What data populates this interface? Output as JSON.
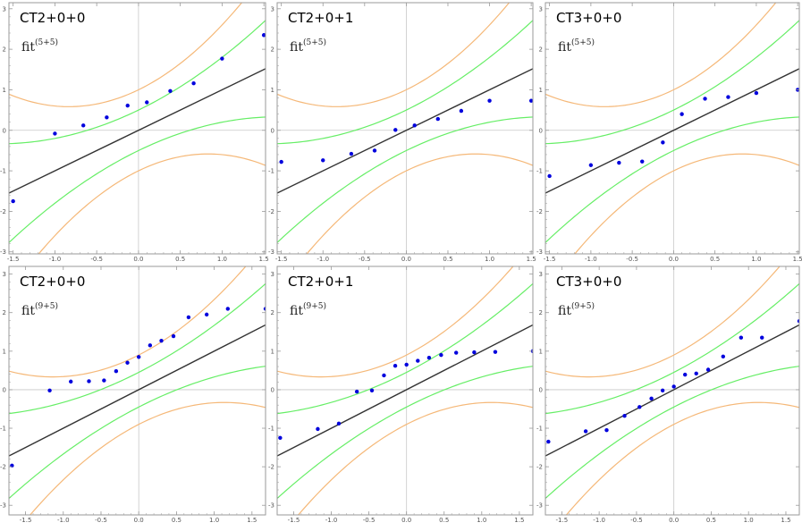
{
  "colors": {
    "frame": "#9a9a9a",
    "axis": "#c8c8c8",
    "identity": "#333333",
    "inner_band": "#66ee66",
    "outer_band": "#f5b878",
    "points": "#0000dd"
  },
  "chart_data": [
    {
      "type": "scatter",
      "title": "CT2+0+0",
      "fit_label": "fit",
      "fit_sup": "(5+5)",
      "xlim": [
        -1.55,
        1.52
      ],
      "ylim": [
        -3.05,
        3.15
      ],
      "xticks": [
        -1.5,
        -1.0,
        -0.5,
        0.0,
        0.5,
        1.0,
        1.5
      ],
      "xtick_labels": [
        "-1.5",
        "-1.0",
        "-0.5",
        "0.0",
        "0.5",
        "1.0",
        "1.5"
      ],
      "yticks": [
        -3,
        -2,
        -1,
        0,
        1,
        2,
        3
      ],
      "ytick_labels": [
        "-3",
        "-2",
        "-1",
        "0",
        "1",
        "2",
        "3"
      ],
      "band_a": 1.0,
      "band_b": 0.5,
      "band_c": 0.3,
      "x": [
        -1.5,
        -1.0,
        -0.66,
        -0.38,
        -0.13,
        0.1,
        0.38,
        0.66,
        1.0,
        1.5
      ],
      "y": [
        -1.75,
        -0.08,
        0.12,
        0.32,
        0.61,
        0.69,
        0.97,
        1.16,
        1.77,
        2.35
      ]
    },
    {
      "type": "scatter",
      "title": "CT2+0+1",
      "fit_label": "fit",
      "fit_sup": "(5+5)",
      "xlim": [
        -1.55,
        1.52
      ],
      "ylim": [
        -3.05,
        3.15
      ],
      "xticks": [
        -1.5,
        -1.0,
        -0.5,
        0.0,
        0.5,
        1.0,
        1.5
      ],
      "xtick_labels": [
        "-1.5",
        "-1.0",
        "-0.5",
        "0.0",
        "0.5",
        "1.0",
        "1.5"
      ],
      "yticks": [
        -3,
        -2,
        -1,
        0,
        1,
        2,
        3
      ],
      "ytick_labels": [
        "-3",
        "-2",
        "-1",
        "0",
        "1",
        "2",
        "3"
      ],
      "band_a": 1.0,
      "band_b": 0.5,
      "band_c": 0.3,
      "x": [
        -1.5,
        -1.0,
        -0.66,
        -0.38,
        -0.13,
        0.1,
        0.38,
        0.66,
        1.0,
        1.5
      ],
      "y": [
        -0.78,
        -0.74,
        -0.58,
        -0.5,
        0.01,
        0.12,
        0.28,
        0.48,
        0.73,
        0.73
      ]
    },
    {
      "type": "scatter",
      "title": "CT3+0+0",
      "fit_label": "fit",
      "fit_sup": "(5+5)",
      "xlim": [
        -1.55,
        1.52
      ],
      "ylim": [
        -3.05,
        3.15
      ],
      "xticks": [
        -1.5,
        -1.0,
        -0.5,
        0.0,
        0.5,
        1.0,
        1.5
      ],
      "xtick_labels": [
        "-1.5",
        "-1.0",
        "-0.5",
        "0.0",
        "0.5",
        "1.0",
        "1.5"
      ],
      "yticks": [
        -3,
        -2,
        -1,
        0,
        1,
        2,
        3
      ],
      "ytick_labels": [
        "-3",
        "-2",
        "-1",
        "0",
        "1",
        "2",
        "3"
      ],
      "band_a": 1.0,
      "band_b": 0.5,
      "band_c": 0.3,
      "x": [
        -1.5,
        -1.0,
        -0.66,
        -0.38,
        -0.13,
        0.1,
        0.38,
        0.66,
        1.0,
        1.5
      ],
      "y": [
        -1.13,
        -0.86,
        -0.8,
        -0.77,
        -0.3,
        0.4,
        0.78,
        0.82,
        0.92,
        1.0
      ]
    },
    {
      "type": "scatter",
      "title": "CT2+0+0",
      "fit_label": "fit",
      "fit_sup": "(9+5)",
      "xlim": [
        -1.72,
        1.68
      ],
      "ylim": [
        -3.25,
        3.2
      ],
      "xticks": [
        -1.5,
        -1.0,
        -0.5,
        0.0,
        0.5,
        1.0,
        1.5
      ],
      "xtick_labels": [
        "-1.5",
        "-1.0",
        "-0.5",
        "0.0",
        "0.5",
        "1.0",
        "1.5"
      ],
      "yticks": [
        -3,
        -2,
        -1,
        0,
        1,
        2,
        3
      ],
      "ytick_labels": [
        "-3",
        "-2",
        "-1",
        "0",
        "1",
        "2",
        "3"
      ],
      "band_a": 1.0,
      "band_b": 0.45,
      "band_c": 0.22,
      "x": [
        -1.68,
        -1.18,
        -0.9,
        -0.66,
        -0.46,
        -0.3,
        -0.15,
        0.0,
        0.15,
        0.3,
        0.46,
        0.66,
        0.9,
        1.18,
        1.68
      ],
      "y": [
        -1.97,
        -0.02,
        0.21,
        0.22,
        0.24,
        0.48,
        0.7,
        0.85,
        1.15,
        1.27,
        1.39,
        1.88,
        1.95,
        2.1,
        2.1
      ]
    },
    {
      "type": "scatter",
      "title": "CT2+0+1",
      "fit_label": "fit",
      "fit_sup": "(9+5)",
      "xlim": [
        -1.72,
        1.68
      ],
      "ylim": [
        -3.25,
        3.2
      ],
      "xticks": [
        -1.5,
        -1.0,
        -0.5,
        0.0,
        0.5,
        1.0,
        1.5
      ],
      "xtick_labels": [
        "-1.5",
        "-1.0",
        "-0.5",
        "0.0",
        "0.5",
        "1.0",
        "1.5"
      ],
      "yticks": [
        -3,
        -2,
        -1,
        0,
        1,
        2,
        3
      ],
      "ytick_labels": [
        "-3",
        "-2",
        "-1",
        "0",
        "1",
        "2",
        "3"
      ],
      "band_a": 1.0,
      "band_b": 0.45,
      "band_c": 0.22,
      "x": [
        -1.68,
        -1.18,
        -0.9,
        -0.66,
        -0.46,
        -0.3,
        -0.15,
        0.0,
        0.15,
        0.3,
        0.46,
        0.66,
        0.9,
        1.18,
        1.68
      ],
      "y": [
        -1.25,
        -1.02,
        -0.88,
        -0.05,
        -0.02,
        0.37,
        0.62,
        0.65,
        0.75,
        0.83,
        0.9,
        0.96,
        0.97,
        0.98,
        1.0
      ]
    },
    {
      "type": "scatter",
      "title": "CT3+0+0",
      "fit_label": "fit",
      "fit_sup": "(9+5)",
      "xlim": [
        -1.72,
        1.68
      ],
      "ylim": [
        -3.25,
        3.2
      ],
      "xticks": [
        -1.5,
        -1.0,
        -0.5,
        0.0,
        0.5,
        1.0,
        1.5
      ],
      "xtick_labels": [
        "-1.5",
        "-1.0",
        "-0.5",
        "0.0",
        "0.5",
        "1.0",
        "1.5"
      ],
      "yticks": [
        -3,
        -2,
        -1,
        0,
        1,
        2,
        3
      ],
      "ytick_labels": [
        "-3",
        "-2",
        "-1",
        "0",
        "1",
        "2",
        "3"
      ],
      "band_a": 1.0,
      "band_b": 0.45,
      "band_c": 0.22,
      "x": [
        -1.68,
        -1.18,
        -0.9,
        -0.66,
        -0.46,
        -0.3,
        -0.15,
        0.0,
        0.15,
        0.3,
        0.46,
        0.66,
        0.9,
        1.18,
        1.68
      ],
      "y": [
        -1.35,
        -1.08,
        -1.05,
        -0.68,
        -0.45,
        -0.23,
        -0.02,
        0.08,
        0.39,
        0.42,
        0.52,
        0.86,
        1.35,
        1.35,
        1.78
      ]
    }
  ]
}
